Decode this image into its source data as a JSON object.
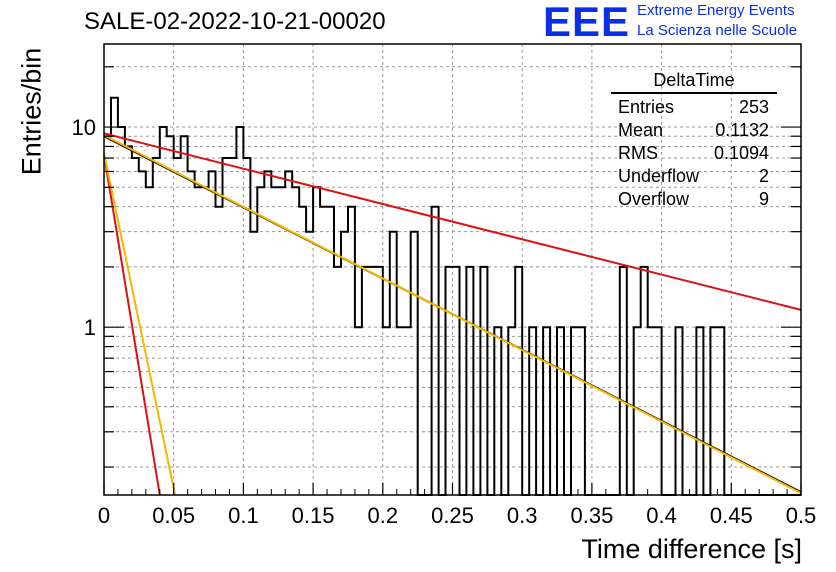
{
  "header": {
    "title": "SALE-02-2022-10-21-00020",
    "logo_text": "EEE",
    "brand_line1": "Extreme Energy Events",
    "brand_line2": "La Scienza nelle Scuole"
  },
  "stats_box": {
    "title": "DeltaTime",
    "rows": [
      {
        "label": "Entries",
        "value": "253"
      },
      {
        "label": "Mean",
        "value": "0.1132"
      },
      {
        "label": "RMS",
        "value": "0.1094"
      },
      {
        "label": "Underflow",
        "value": "2"
      },
      {
        "label": "Overflow",
        "value": "9"
      }
    ]
  },
  "chart_data": {
    "type": "line",
    "title": "SALE-02-2022-10-21-00020",
    "xlabel": "Time difference [s]",
    "ylabel": "Entries/bin",
    "xlim": [
      0,
      0.5
    ],
    "ylim": [
      0.145,
      26
    ],
    "y_scale": "log",
    "grid": true,
    "x_ticks": [
      "0",
      "0.05",
      "0.1",
      "0.15",
      "0.2",
      "0.25",
      "0.3",
      "0.35",
      "0.4",
      "0.45",
      "0.5"
    ],
    "y_ticks": [
      "1",
      "10"
    ],
    "histogram": {
      "name": "DeltaTime",
      "bin_width": 0.005,
      "values": [
        9,
        14,
        10,
        8,
        7,
        6,
        5,
        7,
        10,
        9,
        7,
        9,
        6,
        5,
        5,
        6,
        4,
        7,
        7,
        10,
        7,
        3,
        5,
        6,
        5,
        5,
        6,
        5,
        4,
        3,
        5,
        4,
        4,
        2,
        3,
        4,
        1,
        2,
        2,
        2,
        1,
        3,
        1,
        1,
        3,
        0,
        0,
        4,
        0,
        2,
        2,
        0,
        2,
        0,
        2,
        0,
        1,
        0,
        1,
        2,
        0,
        1,
        0,
        1,
        0,
        1,
        0,
        1,
        1,
        0,
        0,
        0,
        0,
        0,
        2,
        0,
        1,
        2,
        1,
        1,
        0,
        0,
        1,
        0,
        0,
        1,
        0,
        1,
        1,
        0,
        0,
        0,
        0,
        0,
        0,
        0,
        0,
        0,
        0,
        0
      ]
    },
    "series": [
      {
        "color": "#000000",
        "points": [
          [
            0,
            9.0
          ],
          [
            0.5,
            0.15
          ]
        ]
      },
      {
        "color": "#f5b800",
        "points": [
          [
            0,
            9.1
          ],
          [
            0.5,
            0.148
          ]
        ]
      },
      {
        "color": "#dd1111",
        "points": [
          [
            0,
            9.3
          ],
          [
            0.5,
            1.22
          ]
        ]
      },
      {
        "color": "#dd1111",
        "points": [
          [
            0,
            7.3
          ],
          [
            0.04,
            0.145
          ]
        ]
      },
      {
        "color": "#f5b800",
        "points": [
          [
            0,
            7.4
          ],
          [
            0.051,
            0.145
          ]
        ]
      }
    ]
  }
}
